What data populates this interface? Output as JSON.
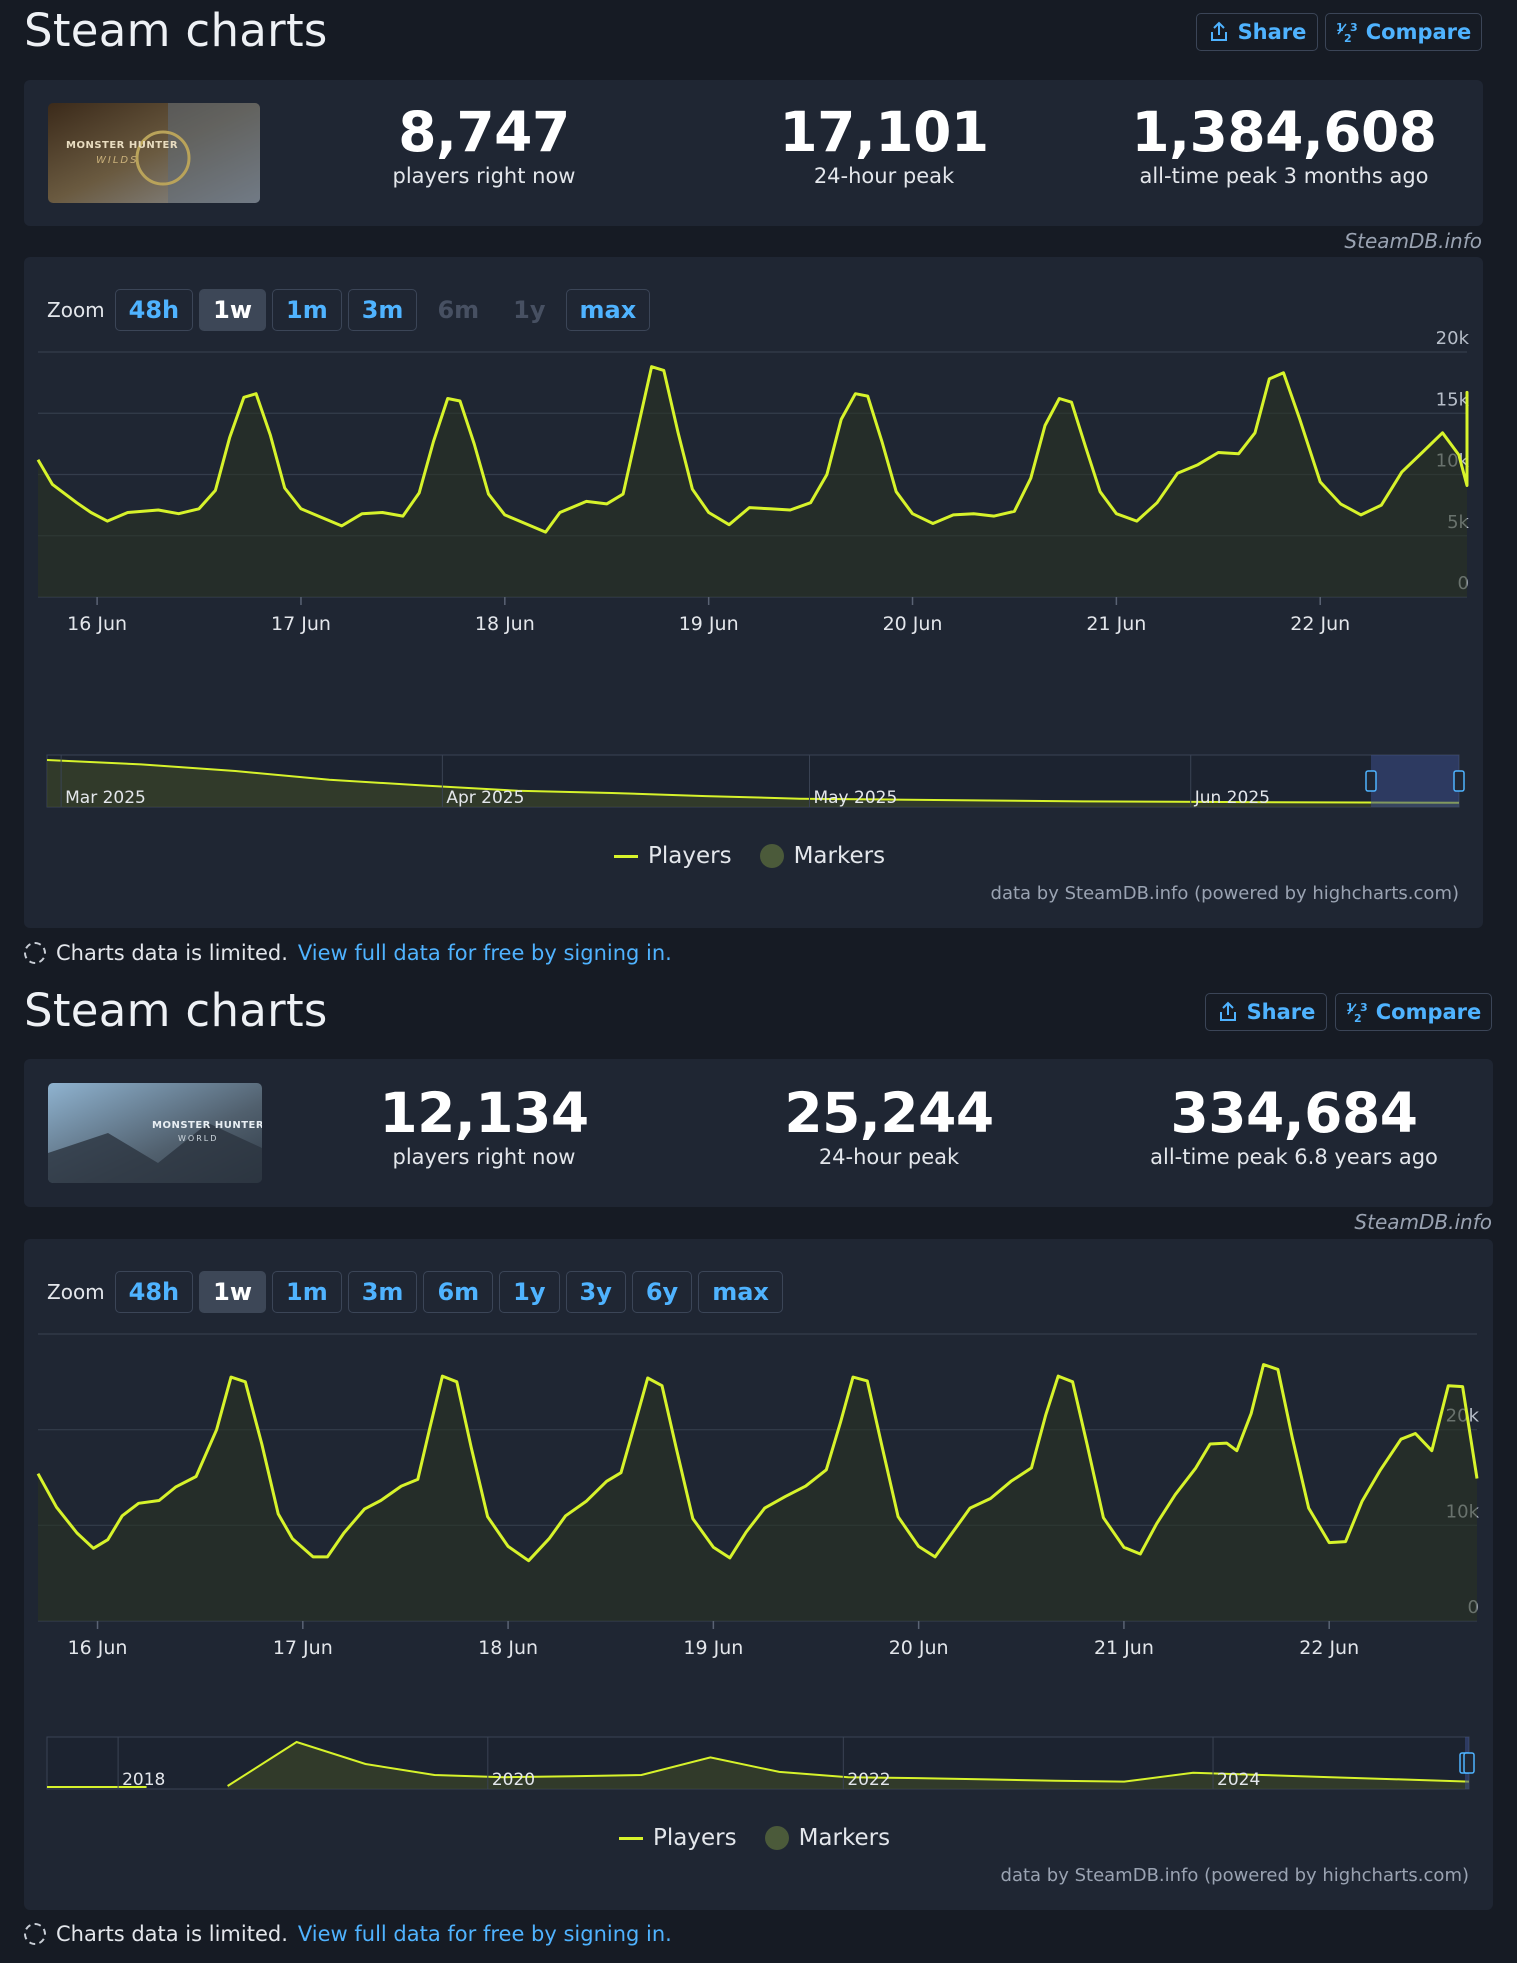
{
  "colors": {
    "accent": "#4fb3ff",
    "series": "#d7f32b",
    "panel": "#1f2633",
    "bg": "#161b24"
  },
  "sections": [
    {
      "title": "Steam charts",
      "share_label": "Share",
      "compare_label": "Compare",
      "thumbnail_alt": "MONSTER HUNTER WILDS",
      "stats": [
        {
          "value": "8,747",
          "label": "players right now"
        },
        {
          "value": "17,101",
          "label": "24-hour peak"
        },
        {
          "value": "1,384,608",
          "label": "all-time peak 3 months ago"
        }
      ],
      "credit": "SteamDB.info",
      "zoom_label": "Zoom",
      "zoom_options": [
        {
          "label": "48h",
          "state": "enabled"
        },
        {
          "label": "1w",
          "state": "active"
        },
        {
          "label": "1m",
          "state": "enabled"
        },
        {
          "label": "3m",
          "state": "enabled"
        },
        {
          "label": "6m",
          "state": "disabled"
        },
        {
          "label": "1y",
          "state": "disabled"
        },
        {
          "label": "max",
          "state": "enabled"
        }
      ],
      "navigator_labels": [
        "Mar 2025",
        "Apr 2025",
        "May 2025",
        "Jun 2025"
      ],
      "legend": {
        "players": "Players",
        "markers": "Markers"
      },
      "data_credit": "data by SteamDB.info (powered by highcharts.com)",
      "limited_text": "Charts data is limited.",
      "limited_link": "View full data for free by signing in."
    },
    {
      "title": "Steam charts",
      "share_label": "Share",
      "compare_label": "Compare",
      "thumbnail_alt": "MONSTER HUNTER WORLD",
      "stats": [
        {
          "value": "12,134",
          "label": "players right now"
        },
        {
          "value": "25,244",
          "label": "24-hour peak"
        },
        {
          "value": "334,684",
          "label": "all-time peak 6.8 years ago"
        }
      ],
      "credit": "SteamDB.info",
      "zoom_label": "Zoom",
      "zoom_options": [
        {
          "label": "48h",
          "state": "enabled"
        },
        {
          "label": "1w",
          "state": "active"
        },
        {
          "label": "1m",
          "state": "enabled"
        },
        {
          "label": "3m",
          "state": "enabled"
        },
        {
          "label": "6m",
          "state": "enabled"
        },
        {
          "label": "1y",
          "state": "enabled"
        },
        {
          "label": "3y",
          "state": "enabled"
        },
        {
          "label": "6y",
          "state": "enabled"
        },
        {
          "label": "max",
          "state": "enabled"
        }
      ],
      "navigator_labels": [
        "2018",
        "2020",
        "2022",
        "2024"
      ],
      "legend": {
        "players": "Players",
        "markers": "Markers"
      },
      "data_credit": "data by SteamDB.info (powered by highcharts.com)",
      "limited_text": "Charts data is limited.",
      "limited_link": "View full data for free by signing in."
    }
  ],
  "chart_data": [
    {
      "type": "line",
      "title": "",
      "xlabel": "",
      "ylabel": "",
      "x_tick_labels": [
        "16 Jun",
        "17 Jun",
        "18 Jun",
        "19 Jun",
        "20 Jun",
        "21 Jun",
        "22 Jun"
      ],
      "y_ticks": [
        0,
        5000,
        10000,
        15000,
        20000
      ],
      "y_tick_labels": [
        "0",
        "5k",
        "10k",
        "15k",
        "20k"
      ],
      "ylim": [
        0,
        20000
      ],
      "x_unit": "days since 15 Jun 00:00",
      "xlim": [
        0.71,
        7.72
      ],
      "series": [
        {
          "name": "Players",
          "points": [
            [
              0.71,
              11200
            ],
            [
              0.78,
              9200
            ],
            [
              0.9,
              7700
            ],
            [
              0.97,
              6900
            ],
            [
              1.05,
              6200
            ],
            [
              1.15,
              6900
            ],
            [
              1.3,
              7100
            ],
            [
              1.4,
              6800
            ],
            [
              1.5,
              7200
            ],
            [
              1.58,
              8700
            ],
            [
              1.65,
              13000
            ],
            [
              1.72,
              16300
            ],
            [
              1.78,
              16600
            ],
            [
              1.85,
              13200
            ],
            [
              1.92,
              8900
            ],
            [
              2.0,
              7200
            ],
            [
              2.1,
              6500
            ],
            [
              2.2,
              5800
            ],
            [
              2.3,
              6800
            ],
            [
              2.4,
              6900
            ],
            [
              2.5,
              6600
            ],
            [
              2.58,
              8500
            ],
            [
              2.65,
              12700
            ],
            [
              2.72,
              16200
            ],
            [
              2.78,
              16000
            ],
            [
              2.85,
              12500
            ],
            [
              2.92,
              8400
            ],
            [
              3.0,
              6700
            ],
            [
              3.1,
              6000
            ],
            [
              3.2,
              5300
            ],
            [
              3.27,
              6900
            ],
            [
              3.4,
              7800
            ],
            [
              3.5,
              7600
            ],
            [
              3.58,
              8400
            ],
            [
              3.65,
              13600
            ],
            [
              3.72,
              18800
            ],
            [
              3.78,
              18500
            ],
            [
              3.85,
              13400
            ],
            [
              3.92,
              8800
            ],
            [
              4.0,
              6900
            ],
            [
              4.1,
              5900
            ],
            [
              4.2,
              7300
            ],
            [
              4.3,
              7200
            ],
            [
              4.4,
              7100
            ],
            [
              4.5,
              7700
            ],
            [
              4.58,
              10000
            ],
            [
              4.65,
              14500
            ],
            [
              4.72,
              16600
            ],
            [
              4.78,
              16400
            ],
            [
              4.85,
              12700
            ],
            [
              4.92,
              8600
            ],
            [
              5.0,
              6800
            ],
            [
              5.1,
              6000
            ],
            [
              5.2,
              6700
            ],
            [
              5.3,
              6800
            ],
            [
              5.4,
              6600
            ],
            [
              5.5,
              7000
            ],
            [
              5.58,
              9700
            ],
            [
              5.65,
              14000
            ],
            [
              5.72,
              16200
            ],
            [
              5.78,
              15900
            ],
            [
              5.85,
              12200
            ],
            [
              5.92,
              8600
            ],
            [
              6.0,
              6800
            ],
            [
              6.1,
              6200
            ],
            [
              6.2,
              7700
            ],
            [
              6.3,
              10100
            ],
            [
              6.4,
              10800
            ],
            [
              6.5,
              11800
            ],
            [
              6.6,
              11700
            ],
            [
              6.68,
              13400
            ],
            [
              6.75,
              17800
            ],
            [
              6.82,
              18300
            ],
            [
              6.9,
              14500
            ],
            [
              7.0,
              9400
            ],
            [
              7.1,
              7600
            ],
            [
              7.2,
              6700
            ],
            [
              7.3,
              7500
            ],
            [
              7.4,
              10200
            ],
            [
              7.5,
              11800
            ],
            [
              7.6,
              13400
            ],
            [
              7.68,
              11600
            ],
            [
              7.74,
              15000
            ],
            [
              7.8,
              16700
            ],
            [
              7.86,
              16500
            ],
            [
              7.9,
              13200
            ],
            [
              7.72,
              9100
            ]
          ]
        }
      ],
      "navigator": {
        "labels": [
          "Mar 2025",
          "Apr 2025",
          "May 2025",
          "Jun 2025"
        ],
        "levels": [
          1.0,
          0.9,
          0.75,
          0.55,
          0.42,
          0.3,
          0.25,
          0.18,
          0.12,
          0.1,
          0.08,
          0.06,
          0.05,
          0.04,
          0.035,
          0.03
        ]
      },
      "legend_placement": "bottom-center"
    },
    {
      "type": "line",
      "title": "",
      "xlabel": "",
      "ylabel": "",
      "x_tick_labels": [
        "16 Jun",
        "17 Jun",
        "18 Jun",
        "19 Jun",
        "20 Jun",
        "21 Jun",
        "22 Jun"
      ],
      "y_ticks": [
        0,
        10000,
        20000
      ],
      "y_tick_labels": [
        "0",
        "10k",
        "20k"
      ],
      "ylim": [
        0,
        30000
      ],
      "x_unit": "days since 15 Jun 00:00",
      "xlim": [
        0.71,
        7.72
      ],
      "series": [
        {
          "name": "Players",
          "points": [
            [
              0.71,
              15400
            ],
            [
              0.8,
              11900
            ],
            [
              0.9,
              9200
            ],
            [
              0.98,
              7600
            ],
            [
              1.05,
              8500
            ],
            [
              1.12,
              11000
            ],
            [
              1.2,
              12300
            ],
            [
              1.3,
              12600
            ],
            [
              1.38,
              14000
            ],
            [
              1.48,
              15100
            ],
            [
              1.58,
              20000
            ],
            [
              1.65,
              25500
            ],
            [
              1.72,
              25000
            ],
            [
              1.8,
              18500
            ],
            [
              1.88,
              11200
            ],
            [
              1.95,
              8600
            ],
            [
              2.05,
              6700
            ],
            [
              2.12,
              6700
            ],
            [
              2.2,
              9200
            ],
            [
              2.3,
              11700
            ],
            [
              2.38,
              12600
            ],
            [
              2.48,
              14100
            ],
            [
              2.56,
              14800
            ],
            [
              2.62,
              20300
            ],
            [
              2.68,
              25600
            ],
            [
              2.75,
              25000
            ],
            [
              2.82,
              18200
            ],
            [
              2.9,
              10900
            ],
            [
              3.0,
              7800
            ],
            [
              3.1,
              6300
            ],
            [
              3.2,
              8600
            ],
            [
              3.28,
              11000
            ],
            [
              3.38,
              12500
            ],
            [
              3.48,
              14600
            ],
            [
              3.55,
              15500
            ],
            [
              3.62,
              20800
            ],
            [
              3.68,
              25400
            ],
            [
              3.75,
              24600
            ],
            [
              3.82,
              18000
            ],
            [
              3.9,
              10700
            ],
            [
              4.0,
              7700
            ],
            [
              4.08,
              6600
            ],
            [
              4.16,
              9300
            ],
            [
              4.25,
              11800
            ],
            [
              4.35,
              13000
            ],
            [
              4.45,
              14100
            ],
            [
              4.55,
              15800
            ],
            [
              4.62,
              20800
            ],
            [
              4.68,
              25500
            ],
            [
              4.75,
              25100
            ],
            [
              4.82,
              18400
            ],
            [
              4.9,
              10900
            ],
            [
              5.0,
              7800
            ],
            [
              5.08,
              6700
            ],
            [
              5.16,
              9100
            ],
            [
              5.25,
              11800
            ],
            [
              5.35,
              12800
            ],
            [
              5.45,
              14600
            ],
            [
              5.55,
              16000
            ],
            [
              5.62,
              21600
            ],
            [
              5.68,
              25600
            ],
            [
              5.75,
              25000
            ],
            [
              5.82,
              18500
            ],
            [
              5.9,
              10800
            ],
            [
              6.0,
              7700
            ],
            [
              6.08,
              7000
            ],
            [
              6.16,
              10200
            ],
            [
              6.25,
              13200
            ],
            [
              6.35,
              16000
            ],
            [
              6.42,
              18500
            ],
            [
              6.5,
              18600
            ],
            [
              6.55,
              17800
            ],
            [
              6.62,
              21700
            ],
            [
              6.68,
              26800
            ],
            [
              6.75,
              26300
            ],
            [
              6.82,
              19200
            ],
            [
              6.9,
              11800
            ],
            [
              7.0,
              8200
            ],
            [
              7.08,
              8300
            ],
            [
              7.16,
              12500
            ],
            [
              7.25,
              15800
            ],
            [
              7.35,
              19000
            ],
            [
              7.42,
              19600
            ],
            [
              7.5,
              17800
            ],
            [
              7.58,
              24600
            ],
            [
              7.65,
              24500
            ],
            [
              7.72,
              14900
            ]
          ]
        }
      ],
      "navigator": {
        "labels": [
          "2018",
          "2020",
          "2022",
          "2024"
        ],
        "levels": [
          0.0,
          1.0,
          0.5,
          0.25,
          0.2,
          0.22,
          0.25,
          0.65,
          0.32,
          0.2,
          0.18,
          0.15,
          0.12,
          0.1,
          0.3,
          0.25,
          0.2,
          0.15,
          0.1
        ]
      },
      "legend_placement": "bottom-center"
    }
  ]
}
